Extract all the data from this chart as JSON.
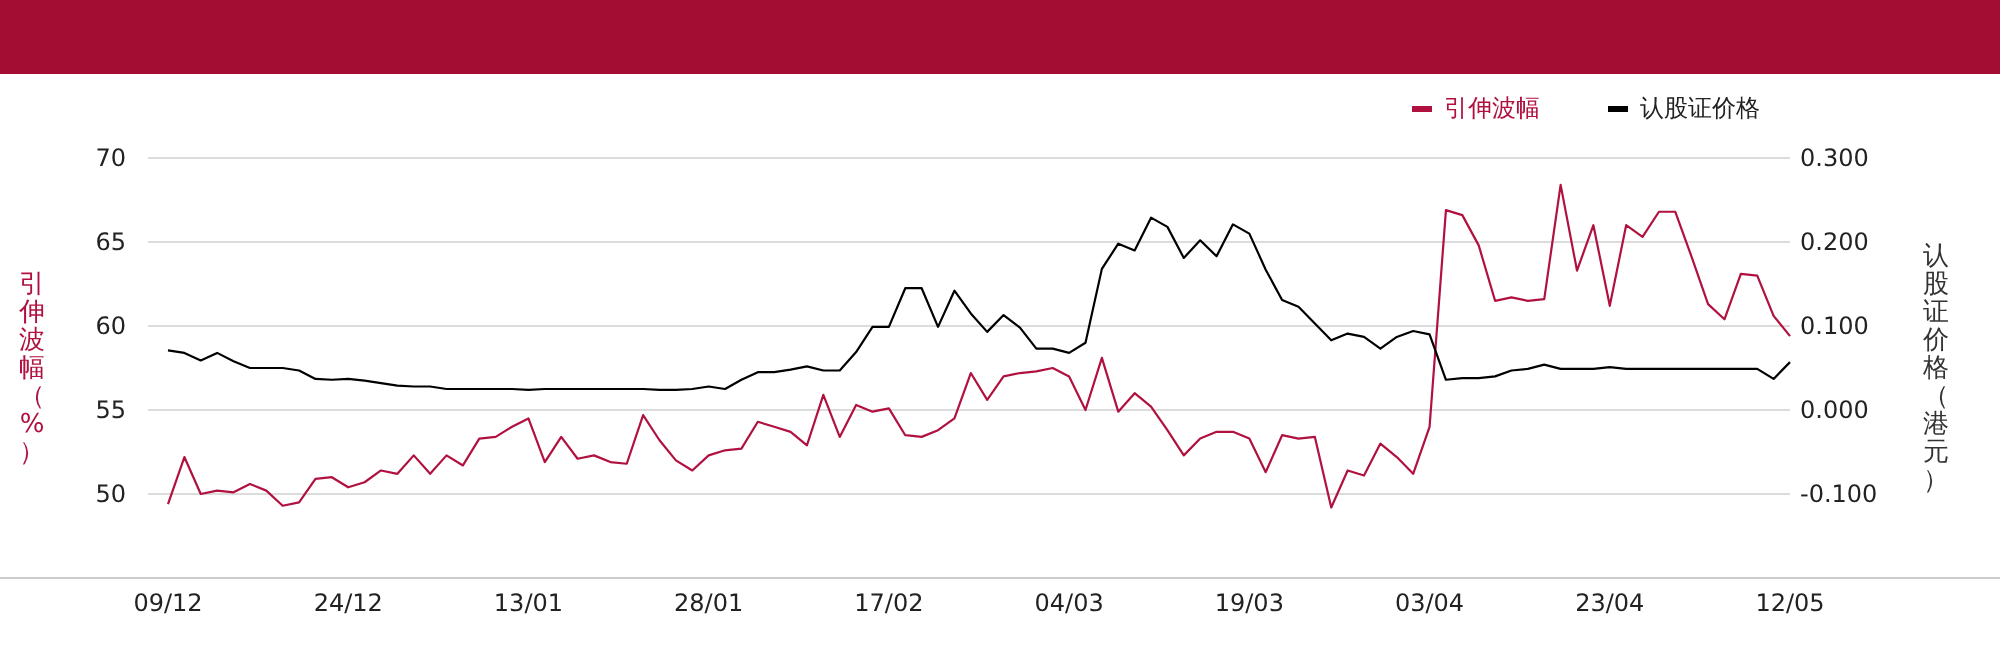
{
  "chart_data": {
    "type": "line",
    "categories": [
      "09/12",
      null,
      null,
      null,
      null,
      null,
      null,
      null,
      null,
      null,
      null,
      "24/12",
      null,
      null,
      null,
      null,
      null,
      null,
      null,
      null,
      null,
      null,
      "13/01",
      null,
      null,
      null,
      null,
      null,
      null,
      null,
      null,
      null,
      null,
      "28/01",
      null,
      null,
      null,
      null,
      null,
      null,
      null,
      null,
      null,
      null,
      "17/02",
      null,
      null,
      null,
      null,
      null,
      null,
      null,
      null,
      null,
      null,
      "04/03",
      null,
      null,
      null,
      null,
      null,
      null,
      null,
      null,
      null,
      null,
      "19/03",
      null,
      null,
      null,
      null,
      null,
      null,
      null,
      null,
      null,
      null,
      "03/04",
      null,
      null,
      null,
      null,
      null,
      null,
      null,
      null,
      null,
      null,
      "23/04",
      null,
      null,
      null,
      null,
      null,
      null,
      null,
      null,
      null,
      null,
      "12/05"
    ],
    "series": [
      {
        "name": "引伸波幅",
        "color": "#b0113f",
        "values": [
          49.4,
          52.2,
          50.0,
          50.2,
          50.1,
          50.6,
          50.2,
          49.3,
          49.5,
          50.9,
          51.0,
          50.4,
          50.7,
          51.4,
          51.2,
          52.3,
          51.2,
          52.3,
          51.7,
          53.3,
          53.4,
          54.0,
          54.5,
          51.9,
          53.4,
          52.1,
          52.3,
          51.9,
          51.8,
          54.7,
          53.2,
          52.0,
          51.4,
          52.3,
          52.6,
          52.7,
          54.3,
          54.0,
          53.7,
          52.9,
          55.9,
          53.4,
          55.3,
          54.9,
          55.1,
          53.5,
          53.4,
          53.8,
          54.5,
          57.2,
          55.6,
          57.0,
          57.2,
          57.3,
          57.5,
          57.0,
          55.0,
          58.1,
          54.9,
          56.0,
          55.2,
          53.8,
          52.3,
          53.3,
          53.7,
          53.7,
          53.3,
          51.3,
          53.5,
          53.3,
          53.4,
          49.2,
          51.4,
          51.1,
          53.0,
          52.2,
          51.2,
          54.0,
          66.9,
          66.6,
          64.8,
          61.5,
          61.7,
          61.5,
          61.6,
          68.4,
          63.3,
          66.0,
          61.2,
          66.0,
          65.3,
          66.8,
          66.8,
          64.1,
          61.3,
          60.4,
          63.1,
          63.0,
          60.6,
          59.4
        ]
      },
      {
        "name": "认股证价格",
        "color": "#000000",
        "axis": "y2",
        "values": [
          0.071,
          0.068,
          0.059,
          0.068,
          0.058,
          0.05,
          0.05,
          0.05,
          0.047,
          0.037,
          0.036,
          0.037,
          0.035,
          0.032,
          0.029,
          0.028,
          0.028,
          0.025,
          0.025,
          0.025,
          0.025,
          0.025,
          0.024,
          0.025,
          0.025,
          0.025,
          0.025,
          0.025,
          0.025,
          0.025,
          0.024,
          0.024,
          0.025,
          0.028,
          0.025,
          0.036,
          0.045,
          0.045,
          0.048,
          0.052,
          0.047,
          0.047,
          0.069,
          0.099,
          0.099,
          0.145,
          0.145,
          0.099,
          0.142,
          0.115,
          0.093,
          0.113,
          0.098,
          0.073,
          0.073,
          0.068,
          0.08,
          0.168,
          0.198,
          0.19,
          0.229,
          0.218,
          0.181,
          0.202,
          0.183,
          0.221,
          0.21,
          0.167,
          0.131,
          0.123,
          0.103,
          0.083,
          0.091,
          0.087,
          0.073,
          0.087,
          0.094,
          0.09,
          0.036,
          0.038,
          0.038,
          0.04,
          0.047,
          0.049,
          0.054,
          0.049,
          0.049,
          0.049,
          0.051,
          0.049,
          0.049,
          0.049,
          0.049,
          0.049,
          0.049,
          0.049,
          0.049,
          0.049,
          0.037,
          0.057
        ]
      }
    ],
    "ylabel": "引伸波幅（%）",
    "y2label": "认股证价格（港元）",
    "ylim": [
      45,
      70
    ],
    "yticks": [
      50,
      55,
      60,
      65,
      70
    ],
    "y2lim": [
      -0.2,
      0.3
    ],
    "y2ticks": [
      {
        "value": -0.1,
        "label": "-0.100"
      },
      {
        "value": 0,
        "label": "0.000"
      },
      {
        "value": 0.1,
        "label": "0.100"
      },
      {
        "value": 0.2,
        "label": "0.200"
      },
      {
        "value": 0.3,
        "label": "0.300"
      }
    ],
    "grid": "y",
    "legend": "top right",
    "marker": "none",
    "line_style": "solid"
  }
}
